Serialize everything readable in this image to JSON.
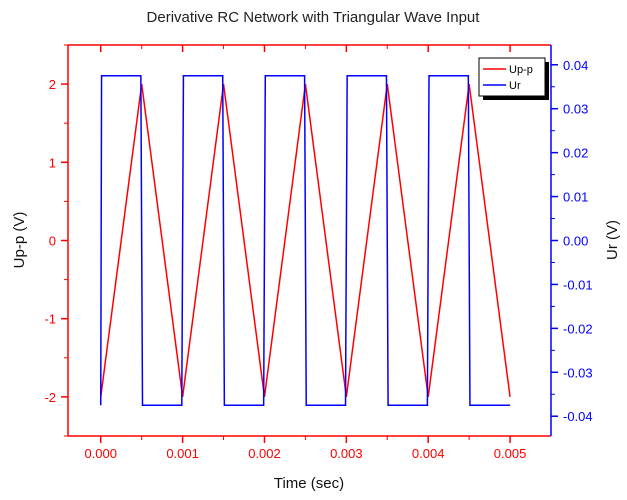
{
  "chart_data": {
    "type": "line",
    "title": "Derivative RC Network with Triangular Wave Input",
    "xlabel": "Time (sec)",
    "ylabel_left": "Up-p (V)",
    "ylabel_right": "Ur (V)",
    "xlim": [
      -0.0004,
      0.0055
    ],
    "ylim_left": [
      -2.5,
      2.5
    ],
    "ylim_right": [
      -0.0445,
      0.0445
    ],
    "x_ticks": [
      "0.000",
      "0.001",
      "0.002",
      "0.003",
      "0.004",
      "0.005"
    ],
    "y_left_ticks": [
      "-2",
      "-1",
      "0",
      "1",
      "2"
    ],
    "y_right_ticks": [
      "-0.04",
      "-0.03",
      "-0.02",
      "-0.01",
      "0.00",
      "0.01",
      "0.02",
      "0.03",
      "0.04"
    ],
    "grid": false,
    "legend_position": "top-right",
    "colors": {
      "left_axis": "#ff0000",
      "right_axis": "#0000ff"
    },
    "series": [
      {
        "name": "Up-p",
        "axis": "left",
        "color": "#ff0000",
        "x": [
          0.0,
          0.0005,
          0.001,
          0.0015,
          0.002,
          0.0025,
          0.003,
          0.0035,
          0.004,
          0.0045,
          0.005
        ],
        "y": [
          -2,
          2,
          -2,
          2,
          -2,
          2,
          -2,
          2,
          -2,
          2,
          -2
        ]
      },
      {
        "name": "Ur",
        "axis": "right",
        "color": "#0000ff",
        "x": [
          0.0,
          1e-05,
          0.00049,
          0.00051,
          0.00099,
          0.00101,
          0.00149,
          0.00151,
          0.00199,
          0.00201,
          0.00249,
          0.00251,
          0.00299,
          0.00301,
          0.00349,
          0.00351,
          0.00399,
          0.00401,
          0.00449,
          0.00451,
          0.005
        ],
        "y": [
          -0.0375,
          0.0375,
          0.0375,
          -0.0375,
          -0.0375,
          0.0375,
          0.0375,
          -0.0375,
          -0.0375,
          0.0375,
          0.0375,
          -0.0375,
          -0.0375,
          0.0375,
          0.0375,
          -0.0375,
          -0.0375,
          0.0375,
          0.0375,
          -0.0375,
          -0.0375
        ]
      }
    ]
  }
}
